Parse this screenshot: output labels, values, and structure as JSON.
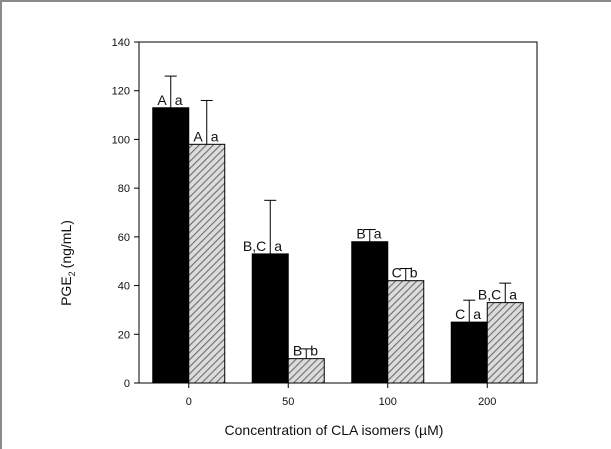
{
  "chart_data": {
    "type": "bar",
    "title": "",
    "xlabel": "Concentration of CLA isomers (µM)",
    "ylabel": {
      "main": "PGE",
      "subscript": "2",
      "unit": "(ng/mL)"
    },
    "categories": [
      "0",
      "50",
      "100",
      "200"
    ],
    "ylim": [
      0,
      140
    ],
    "yticks": [
      "0",
      "20",
      "40",
      "60",
      "80",
      "100",
      "120",
      "140"
    ],
    "grid": false,
    "legend": "none",
    "series": [
      {
        "fill": "solid",
        "color": "#000000",
        "values": [
          113,
          53,
          58,
          25
        ],
        "error": [
          13,
          22,
          5,
          9
        ],
        "labels": [
          {
            "group": "A",
            "letter": "a"
          },
          {
            "group": "B,C",
            "letter": "a"
          },
          {
            "group": "B",
            "letter": "a"
          },
          {
            "group": "C",
            "letter": "a"
          }
        ]
      },
      {
        "fill": "hatched",
        "color": "#8c8c8c",
        "values": [
          98,
          10,
          42,
          33
        ],
        "error": [
          18,
          4,
          5,
          8
        ],
        "labels": [
          {
            "group": "A",
            "letter": "a"
          },
          {
            "group": "B",
            "letter": "b"
          },
          {
            "group": "C",
            "letter": "b"
          },
          {
            "group": "B,C",
            "letter": "a"
          }
        ]
      }
    ]
  }
}
